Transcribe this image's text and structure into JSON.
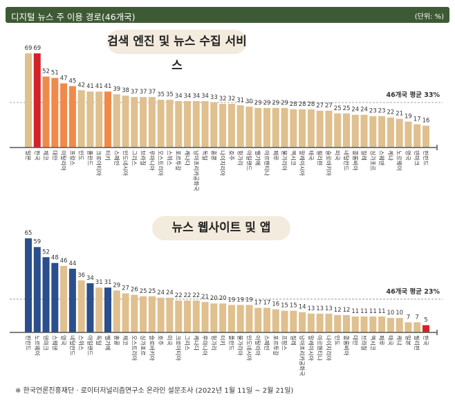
{
  "header": {
    "title": "디지털 뉴스 주 이용 경로(46개국)",
    "unit": "(단위: %)"
  },
  "footnote": "※ 한국언론진흥재단 · 로이터저널리즘연구소 온라인 설문조사 (2022년 1월 11일 ~ 2월 21일)",
  "colors": {
    "default": "#dfc08e",
    "highlight_korea": "#d2232a",
    "search_top": "#f08a4b",
    "news_top": "#2b4e8c",
    "header": "#3e5a34",
    "pill": "#f3ebdd"
  },
  "chart_data": [
    {
      "type": "bar",
      "title": "검색 엔진 및 뉴스 수집 서비스",
      "average_label": "46개국 평균 33%",
      "average": 33,
      "ylim": [
        0,
        70
      ],
      "grid": false,
      "categories": [
        "일본",
        "한국",
        "체코",
        "대만",
        "이탈리아",
        "프랑스",
        "인도",
        "폴란드",
        "크로아티아",
        "터키",
        "스페인",
        "인도네시아",
        "그리스",
        "브라질",
        "루마니아",
        "오스트리아",
        "스위스",
        "포르투갈",
        "캐나다",
        "남아프리카공화국",
        "독일",
        "홍콩",
        "나이지리아",
        "호주",
        "헝가리",
        "아일랜드",
        "벨기에",
        "아르헨티나",
        "페루",
        "불가리아",
        "멕시코",
        "말레이시아",
        "태국",
        "필리핀",
        "슬로바키아",
        "미국",
        "네덜란드",
        "콜롬비아",
        "칠레",
        "싱가포르",
        "스웨덴",
        "케냐",
        "노르웨이",
        "영국",
        "덴마크",
        "핀란드"
      ],
      "values": [
        69,
        69,
        52,
        51,
        47,
        45,
        42,
        41,
        41,
        41,
        39,
        38,
        37,
        37,
        37,
        35,
        35,
        34,
        34,
        34,
        34,
        33,
        32,
        32,
        31,
        30,
        29,
        29,
        29,
        29,
        28,
        28,
        28,
        27,
        27,
        25,
        25,
        24,
        24,
        23,
        23,
        22,
        21,
        19,
        17,
        16
      ],
      "highlight": {
        "한국": "highlight_korea",
        "체코": "search_top",
        "대만": "search_top",
        "이탈리아": "search_top",
        "프랑스": "search_top",
        "터키": "search_top"
      }
    },
    {
      "type": "bar",
      "title": "뉴스 웹사이트 및 앱",
      "average_label": "46개국 평균 23%",
      "average": 23,
      "ylim": [
        0,
        70
      ],
      "grid": false,
      "categories": [
        "핀란드",
        "노르웨이",
        "덴마크",
        "스웨덴",
        "영국",
        "네덜란드",
        "스위스",
        "아일랜드",
        "독일",
        "벨기에",
        "홍콩",
        "체코",
        "오스트리아",
        "싱가포르",
        "슬로바키아",
        "호주",
        "미국",
        "크로아티아",
        "그리스",
        "캐나다",
        "루마니아",
        "헝가리",
        "터키",
        "폴란드",
        "불가리아",
        "인도네시아",
        "이탈리아",
        "스페인",
        "포르투갈",
        "프랑스",
        "칠레",
        "남아프리카공화국",
        "말레이시아",
        "아르헨티나",
        "나이지리아",
        "인도",
        "콜롬비아",
        "대만",
        "브라질",
        "멕시코",
        "페루",
        "태국",
        "케냐",
        "일본",
        "필리핀",
        "한국"
      ],
      "values": [
        65,
        59,
        52,
        48,
        46,
        44,
        36,
        34,
        31,
        31,
        29,
        27,
        26,
        25,
        25,
        24,
        24,
        22,
        22,
        22,
        21,
        20,
        20,
        19,
        19,
        19,
        17,
        17,
        16,
        15,
        15,
        14,
        13,
        13,
        13,
        12,
        12,
        11,
        11,
        11,
        11,
        10,
        10,
        7,
        7,
        5
      ],
      "highlight": {
        "핀란드": "news_top",
        "노르웨이": "news_top",
        "덴마크": "news_top",
        "스웨덴": "news_top",
        "네덜란드": "news_top",
        "아일랜드": "news_top",
        "벨기에": "news_top",
        "한국": "highlight_korea"
      }
    }
  ]
}
